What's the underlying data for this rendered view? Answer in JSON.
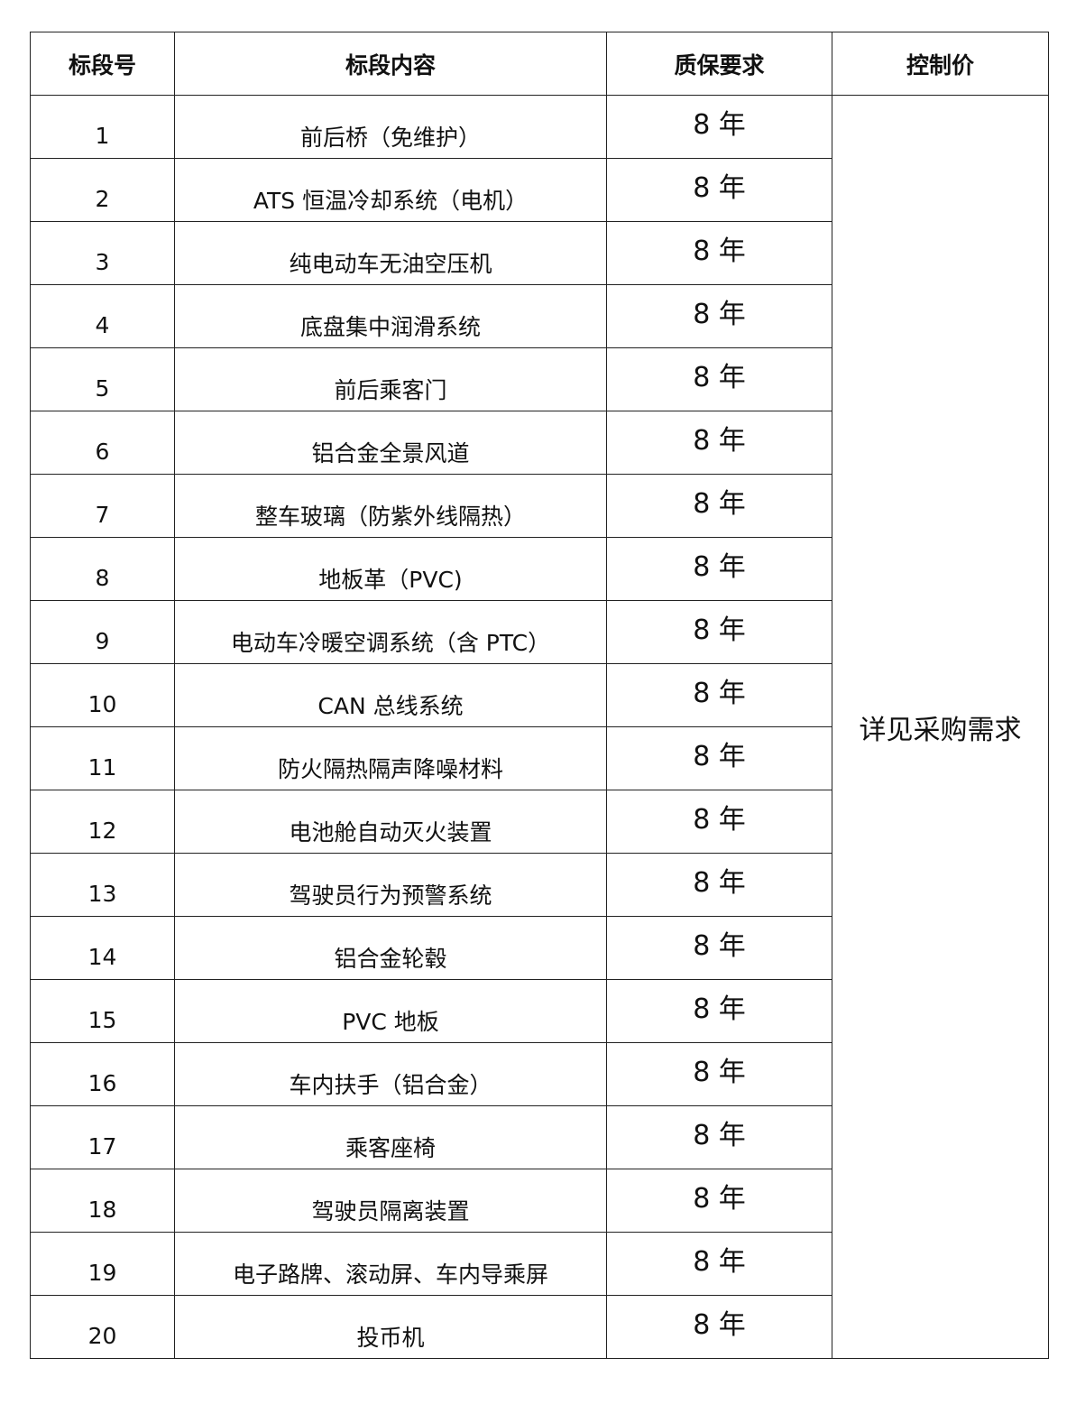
{
  "headers": [
    "标段号",
    "标段内容",
    "质保要求",
    "控制价"
  ],
  "rows": [
    {
      "no": "1",
      "content": "前后桥（免维护）",
      "warranty": "8 年"
    },
    {
      "no": "2",
      "content": "ATS 恒温冷却系统（电机）",
      "warranty": "8 年"
    },
    {
      "no": "3",
      "content": "纯电动车无油空压机",
      "warranty": "8 年"
    },
    {
      "no": "4",
      "content": "底盘集中润滑系统",
      "warranty": "8 年"
    },
    {
      "no": "5",
      "content": "前后乘客门",
      "warranty": "8 年"
    },
    {
      "no": "6",
      "content": "铝合金全景风道",
      "warranty": "8 年"
    },
    {
      "no": "7",
      "content": "整车玻璃（防紫外线隔热）",
      "warranty": "8 年"
    },
    {
      "no": "8",
      "content": "地板革（PVC)",
      "warranty": "8 年"
    },
    {
      "no": "9",
      "content": "电动车冷暖空调系统（含 PTC）",
      "warranty": "8 年"
    },
    {
      "no": "10",
      "content": "CAN 总线系统",
      "warranty": "8 年"
    },
    {
      "no": "11",
      "content": "防火隔热隔声降噪材料",
      "warranty": "8 年"
    },
    {
      "no": "12",
      "content": "电池舱自动灭火装置",
      "warranty": "8 年"
    },
    {
      "no": "13",
      "content": "驾驶员行为预警系统",
      "warranty": "8 年"
    },
    {
      "no": "14",
      "content": "铝合金轮毂",
      "warranty": "8 年"
    },
    {
      "no": "15",
      "content": "PVC 地板",
      "warranty": "8 年"
    },
    {
      "no": "16",
      "content": "车内扶手（铝合金）",
      "warranty": "8 年"
    },
    {
      "no": "17",
      "content": "乘客座椅",
      "warranty": "8 年"
    },
    {
      "no": "18",
      "content": "驾驶员隔离装置",
      "warranty": "8 年"
    },
    {
      "no": "19",
      "content": "电子路牌、滚动屏、车内导乘屏",
      "warranty": "8 年"
    },
    {
      "no": "20",
      "content": "投币机",
      "warranty": "8 年"
    }
  ],
  "price_note": "详见采购需求"
}
